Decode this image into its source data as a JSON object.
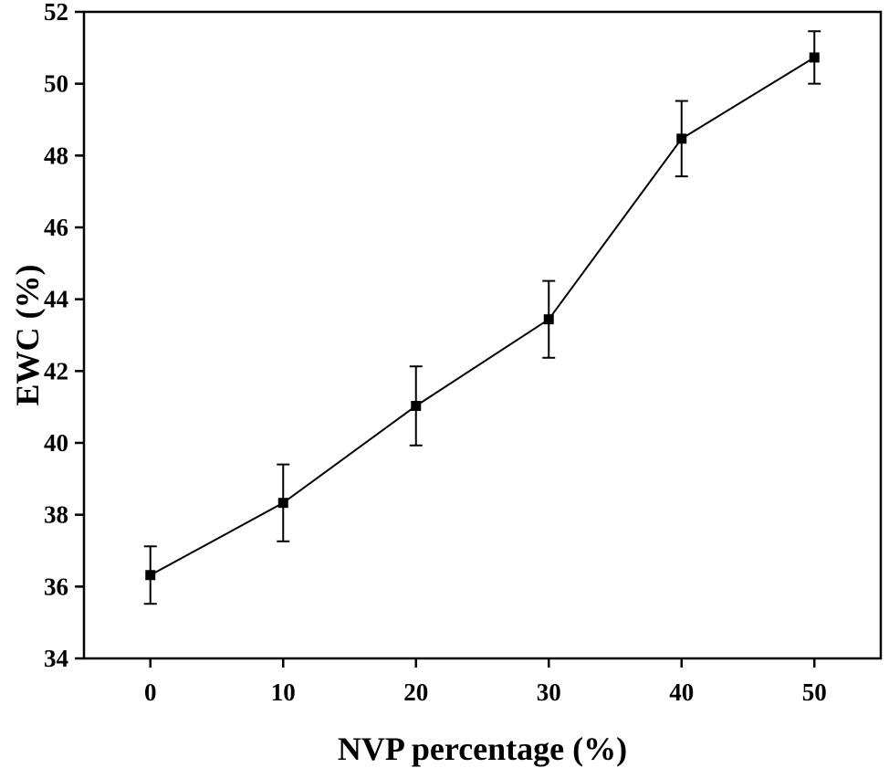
{
  "chart_data": {
    "type": "line",
    "title": "",
    "xlabel": "NVP percentage (%)",
    "ylabel": "EWC (%)",
    "xlim": [
      -5,
      55
    ],
    "ylim": [
      34,
      52
    ],
    "x_ticks": [
      "0",
      "10",
      "20",
      "30",
      "40",
      "50"
    ],
    "y_ticks": [
      "34",
      "36",
      "38",
      "40",
      "42",
      "44",
      "46",
      "48",
      "50",
      "52"
    ],
    "grid": false,
    "legend": "none",
    "series": [
      {
        "name": "EWC",
        "marker": "square",
        "color": "#000000",
        "x": [
          0,
          10,
          20,
          30,
          40,
          50
        ],
        "y": [
          36.32,
          38.33,
          41.03,
          43.44,
          48.47,
          50.73
        ],
        "error": [
          0.8,
          1.07,
          1.1,
          1.07,
          1.05,
          0.73
        ]
      }
    ]
  }
}
